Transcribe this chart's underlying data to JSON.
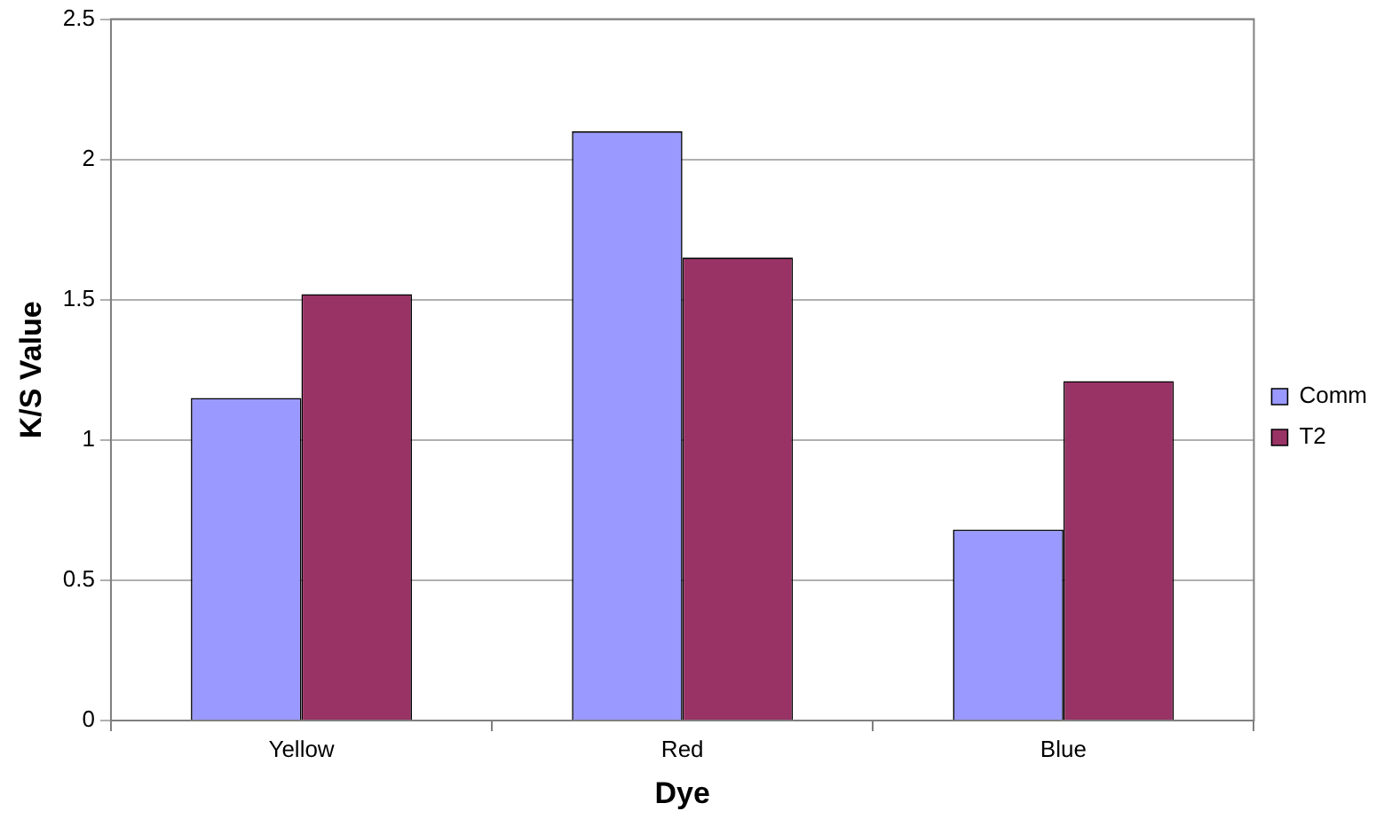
{
  "chart_data": {
    "type": "bar",
    "xlabel": "Dye",
    "ylabel": "K/S Value",
    "categories": [
      "Yellow",
      "Red",
      "Blue"
    ],
    "series": [
      {
        "name": "Comm",
        "color": "#9999ff",
        "values": [
          1.15,
          2.1,
          0.68
        ]
      },
      {
        "name": "T2",
        "color": "#993366",
        "values": [
          1.52,
          1.65,
          1.21
        ]
      }
    ],
    "ylim": [
      0,
      2.5
    ],
    "yticks": [
      0,
      0.5,
      1,
      1.5,
      2,
      2.5
    ],
    "grid": "y",
    "legend": "right"
  }
}
